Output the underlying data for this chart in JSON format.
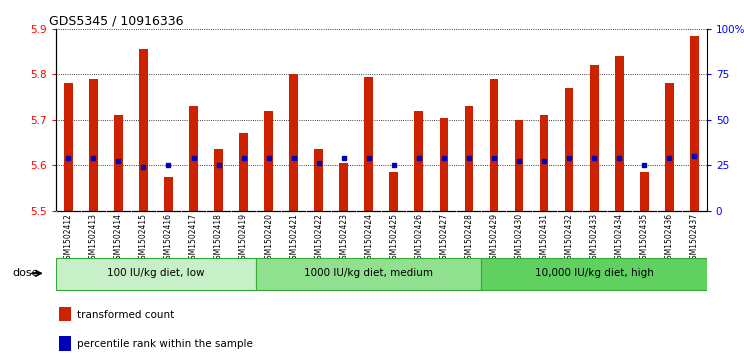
{
  "title": "GDS5345 / 10916336",
  "categories": [
    "GSM1502412",
    "GSM1502413",
    "GSM1502414",
    "GSM1502415",
    "GSM1502416",
    "GSM1502417",
    "GSM1502418",
    "GSM1502419",
    "GSM1502420",
    "GSM1502421",
    "GSM1502422",
    "GSM1502423",
    "GSM1502424",
    "GSM1502425",
    "GSM1502426",
    "GSM1502427",
    "GSM1502428",
    "GSM1502429",
    "GSM1502430",
    "GSM1502431",
    "GSM1502432",
    "GSM1502433",
    "GSM1502434",
    "GSM1502435",
    "GSM1502436",
    "GSM1502437"
  ],
  "bar_values": [
    5.78,
    5.79,
    5.71,
    5.855,
    5.575,
    5.73,
    5.635,
    5.67,
    5.72,
    5.8,
    5.635,
    5.605,
    5.795,
    5.585,
    5.72,
    5.705,
    5.73,
    5.79,
    5.7,
    5.71,
    5.77,
    5.82,
    5.84,
    5.585,
    5.78,
    5.885
  ],
  "percentile_values": [
    5.615,
    5.615,
    5.61,
    5.595,
    5.6,
    5.615,
    5.6,
    5.615,
    5.615,
    5.615,
    5.605,
    5.615,
    5.615,
    5.6,
    5.615,
    5.615,
    5.615,
    5.615,
    5.61,
    5.61,
    5.615,
    5.615,
    5.615,
    5.6,
    5.615,
    5.62
  ],
  "bar_color": "#cc2200",
  "dot_color": "#0000bb",
  "ymin": 5.5,
  "ymax": 5.9,
  "y_ticks": [
    5.5,
    5.6,
    5.7,
    5.8,
    5.9
  ],
  "y_right_labels": [
    "0",
    "25",
    "50",
    "75",
    "100%"
  ],
  "groups": [
    {
      "label": "100 IU/kg diet, low",
      "start": 0,
      "end": 8
    },
    {
      "label": "1000 IU/kg diet, medium",
      "start": 8,
      "end": 17
    },
    {
      "label": "10,000 IU/kg diet, high",
      "start": 17,
      "end": 26
    }
  ],
  "group_bg_colors": [
    "#b8f0b8",
    "#7de87d",
    "#55d855"
  ],
  "dose_label": "dose",
  "legend_items": [
    {
      "label": "transformed count",
      "color": "#cc2200"
    },
    {
      "label": "percentile rank within the sample",
      "color": "#0000bb"
    }
  ],
  "xtick_bg": "#d0d0d0",
  "title_fontsize": 9,
  "bar_width": 0.35
}
